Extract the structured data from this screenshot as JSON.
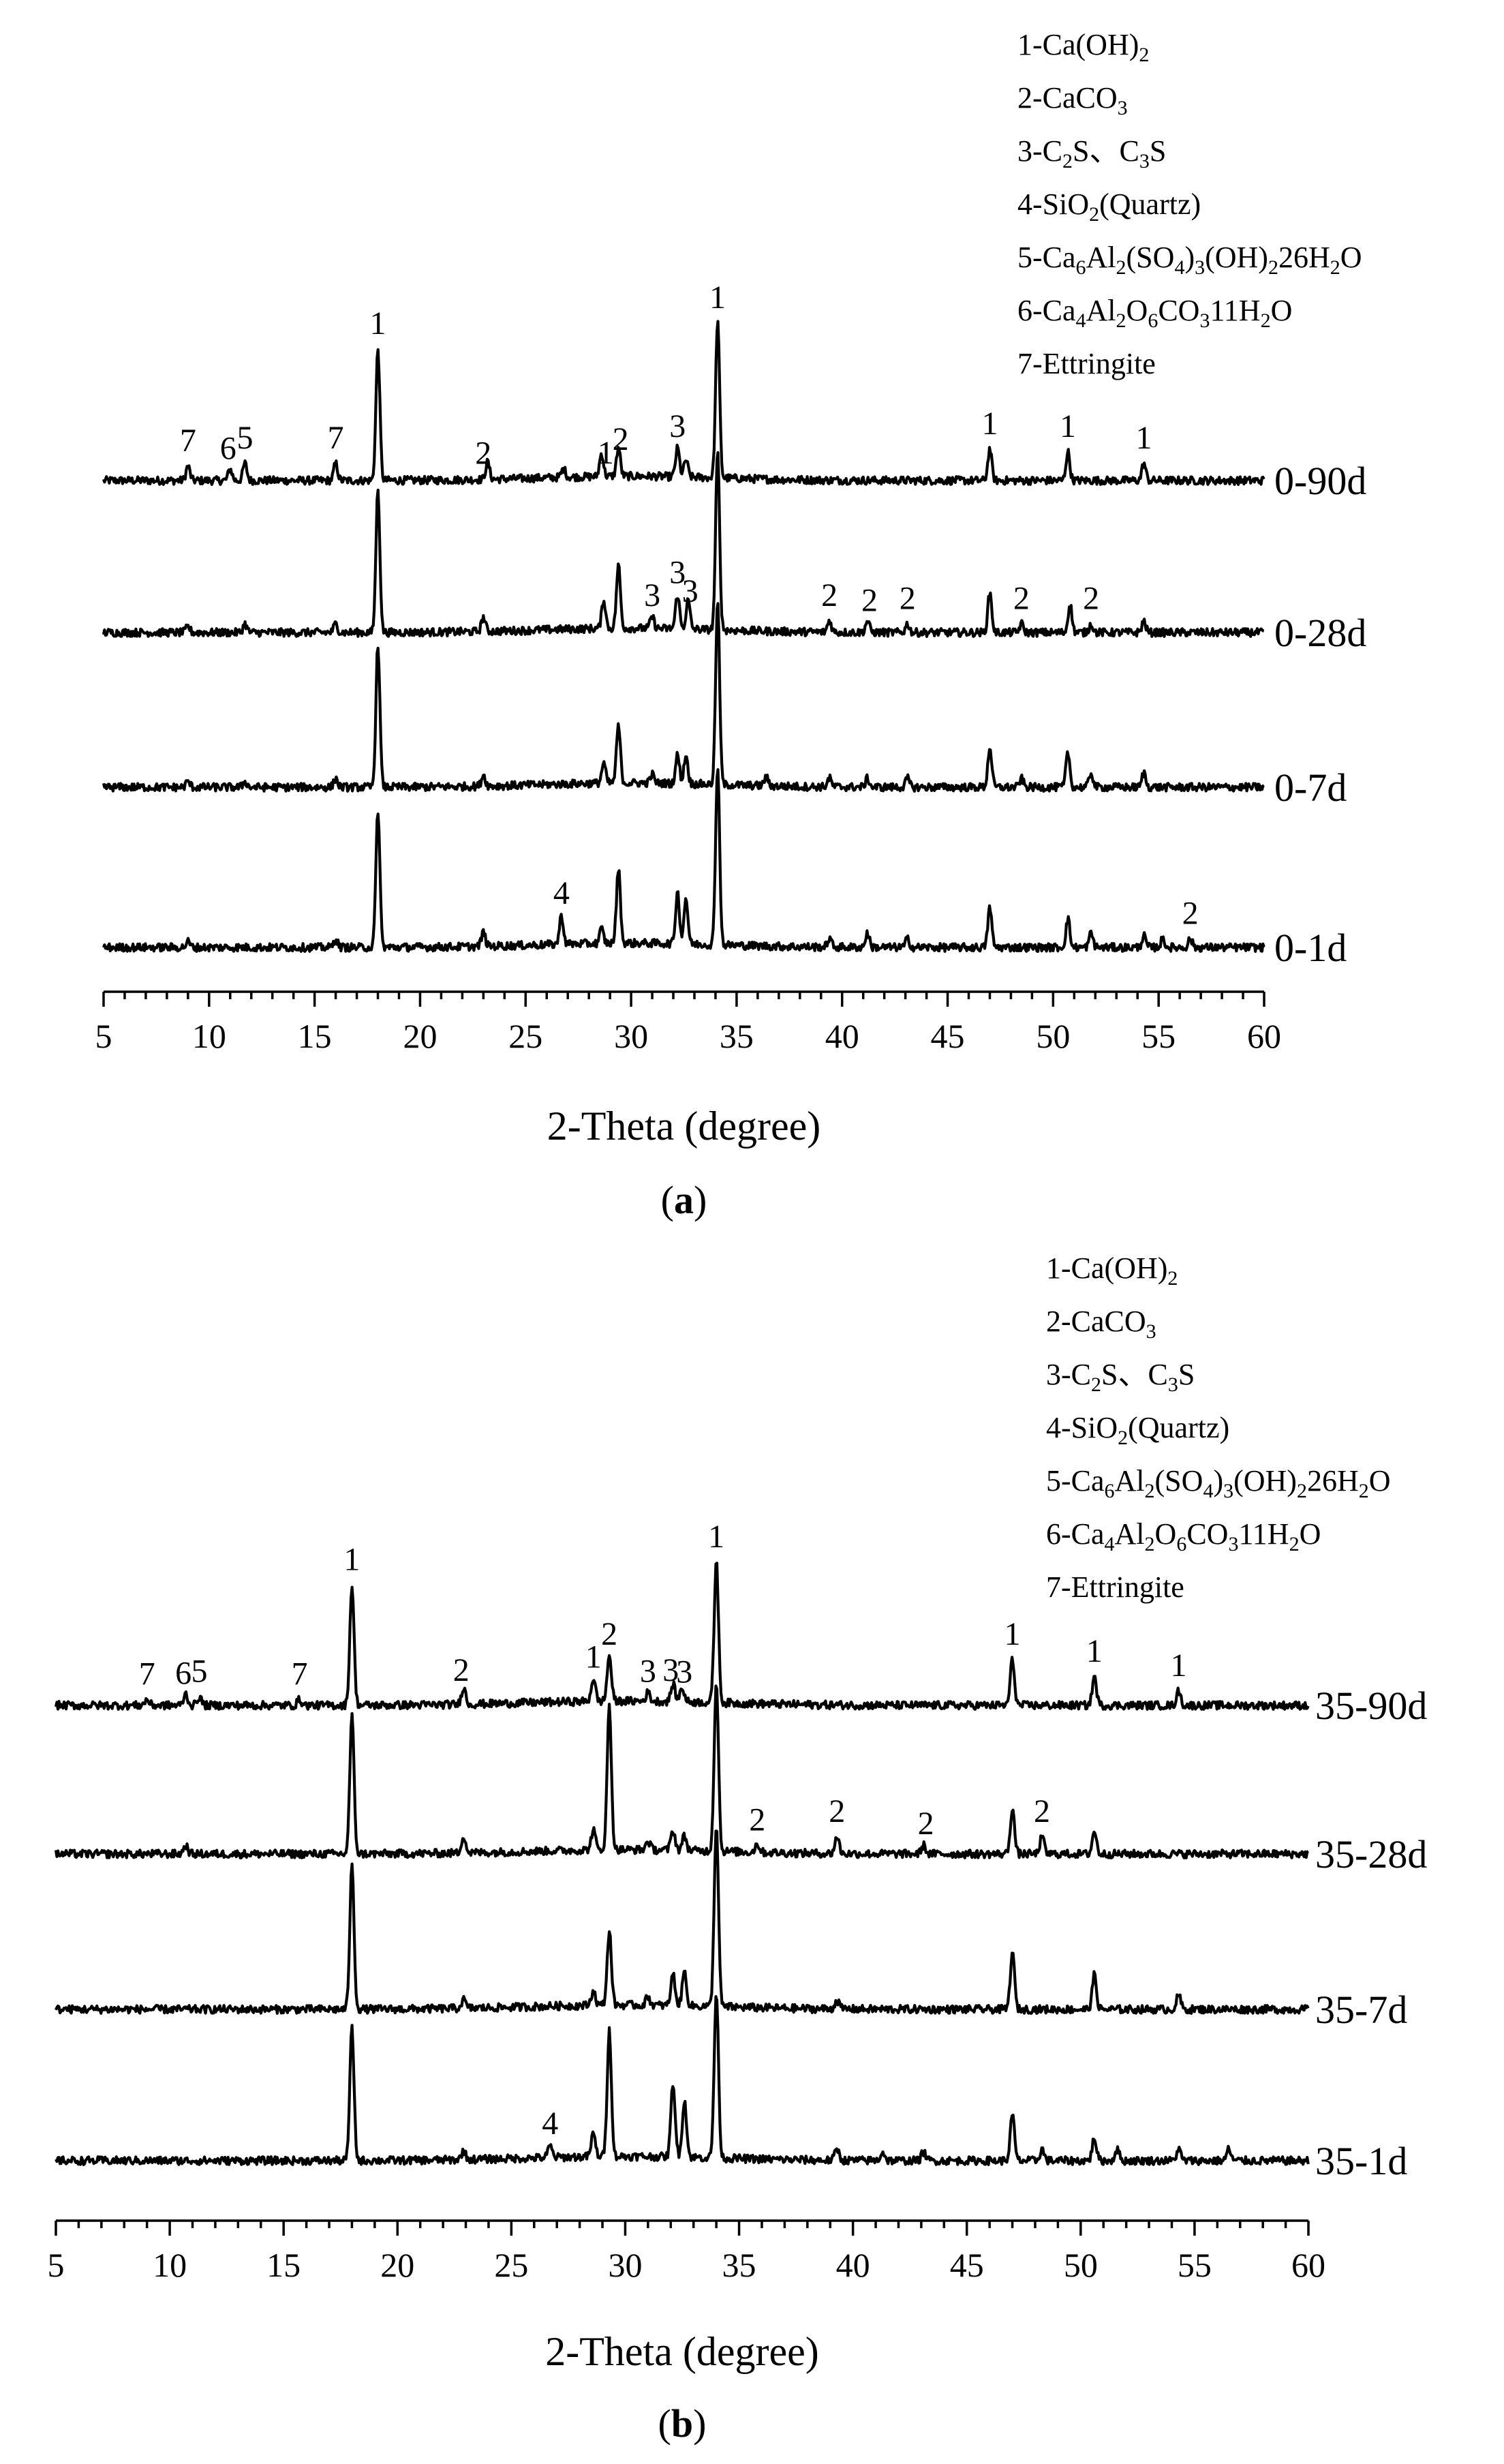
{
  "legend": [
    {
      "base": "1-Ca(OH)",
      "subs": [
        [
          "2",
          0
        ]
      ]
    },
    {
      "base": "2-CaCO",
      "subs": [
        [
          "3",
          0
        ]
      ]
    },
    {
      "parts": [
        [
          "3-C",
          ""
        ],
        [
          "2",
          "sub"
        ],
        [
          "S、C",
          ""
        ],
        [
          "3",
          "sub"
        ],
        [
          "S",
          ""
        ]
      ]
    },
    {
      "parts": [
        [
          "4-SiO",
          ""
        ],
        [
          "2",
          "sub"
        ],
        [
          "(Quartz)",
          ""
        ]
      ]
    },
    {
      "parts": [
        [
          "5-Ca",
          ""
        ],
        [
          "6",
          "sub"
        ],
        [
          "Al",
          ""
        ],
        [
          "2",
          "sub"
        ],
        [
          "(SO",
          ""
        ],
        [
          "4",
          "sub"
        ],
        [
          ")",
          ""
        ],
        [
          "3",
          "sub"
        ],
        [
          "(OH)",
          ""
        ],
        [
          "2",
          "sub"
        ],
        [
          "26H",
          ""
        ],
        [
          "2",
          "sub"
        ],
        [
          "O",
          ""
        ]
      ]
    },
    {
      "parts": [
        [
          "6-Ca",
          ""
        ],
        [
          "4",
          "sub"
        ],
        [
          "Al",
          ""
        ],
        [
          "2",
          "sub"
        ],
        [
          "O",
          ""
        ],
        [
          "6",
          "sub"
        ],
        [
          "CO",
          ""
        ],
        [
          "3",
          "sub"
        ],
        [
          "11H",
          ""
        ],
        [
          "2",
          "sub"
        ],
        [
          "O",
          ""
        ]
      ]
    },
    {
      "parts": [
        [
          "7-Ettringite",
          ""
        ]
      ]
    }
  ],
  "chart_data": [
    {
      "type": "line",
      "caption_prefix": "(",
      "caption_letter": "a",
      "caption_suffix": ")",
      "xlabel": "2-Theta (degree)",
      "xlim": [
        5,
        60
      ],
      "xticks": [
        5,
        10,
        15,
        20,
        25,
        30,
        35,
        40,
        45,
        50,
        55,
        60
      ],
      "series": [
        {
          "name": "0-90d",
          "peaks": [
            [
              9.0,
              0.05
            ],
            [
              11.0,
              0.04
            ],
            [
              11.7,
              0.06
            ],
            [
              16.0,
              0.06
            ],
            [
              18.0,
              0.46
            ],
            [
              23.2,
              0.06
            ],
            [
              26.8,
              0.03
            ],
            [
              28.6,
              0.08
            ],
            [
              29.4,
              0.1
            ],
            [
              32.2,
              0.1
            ],
            [
              32.6,
              0.06
            ],
            [
              34.1,
              0.55
            ],
            [
              47.0,
              0.11
            ],
            [
              50.7,
              0.1
            ],
            [
              54.3,
              0.06
            ]
          ],
          "labels": [
            [
              "7",
              9.0
            ],
            [
              "6",
              10.9
            ],
            [
              "5",
              11.7
            ],
            [
              "7",
              16.0
            ],
            [
              "1",
              18.0
            ],
            [
              "2",
              23.0
            ],
            [
              "1",
              28.8
            ],
            [
              "2",
              29.5
            ],
            [
              "3",
              32.2
            ],
            [
              "1",
              34.1
            ],
            [
              "1",
              47.0
            ],
            [
              "1",
              50.7
            ],
            [
              "1",
              54.3
            ]
          ]
        },
        {
          "name": "0-28d",
          "peaks": [
            [
              9.0,
              0.02
            ],
            [
              11.7,
              0.03
            ],
            [
              16.0,
              0.03
            ],
            [
              18.0,
              0.5
            ],
            [
              23.0,
              0.05
            ],
            [
              28.7,
              0.1
            ],
            [
              29.4,
              0.22
            ],
            [
              31.0,
              0.04
            ],
            [
              32.2,
              0.12
            ],
            [
              32.7,
              0.1
            ],
            [
              34.1,
              0.62
            ],
            [
              39.4,
              0.04
            ],
            [
              41.2,
              0.04
            ],
            [
              43.1,
              0.03
            ],
            [
              47.0,
              0.14
            ],
            [
              48.5,
              0.03
            ],
            [
              50.8,
              0.1
            ],
            [
              51.8,
              0.03
            ],
            [
              54.3,
              0.04
            ]
          ],
          "labels": [
            [
              "3",
              31.0
            ],
            [
              "3",
              32.2
            ],
            [
              "3",
              32.8
            ],
            [
              "2",
              39.4
            ],
            [
              "2",
              41.3
            ],
            [
              "2",
              43.1
            ],
            [
              "2",
              48.5
            ],
            [
              "2",
              51.8
            ]
          ]
        },
        {
          "name": "0-7d",
          "peaks": [
            [
              9.0,
              0.02
            ],
            [
              11.7,
              0.02
            ],
            [
              16.0,
              0.03
            ],
            [
              18.0,
              0.5
            ],
            [
              23.0,
              0.04
            ],
            [
              28.7,
              0.07
            ],
            [
              29.4,
              0.2
            ],
            [
              31.0,
              0.03
            ],
            [
              32.2,
              0.1
            ],
            [
              32.6,
              0.1
            ],
            [
              34.1,
              0.64
            ],
            [
              36.4,
              0.03
            ],
            [
              39.4,
              0.03
            ],
            [
              41.2,
              0.03
            ],
            [
              43.1,
              0.03
            ],
            [
              47.0,
              0.14
            ],
            [
              48.5,
              0.03
            ],
            [
              50.7,
              0.12
            ],
            [
              51.8,
              0.05
            ],
            [
              54.3,
              0.05
            ]
          ],
          "labels": []
        },
        {
          "name": "0-1d",
          "peaks": [
            [
              9.0,
              0.02
            ],
            [
              16.0,
              0.03
            ],
            [
              18.0,
              0.48
            ],
            [
              23.0,
              0.05
            ],
            [
              26.7,
              0.1
            ],
            [
              28.6,
              0.05
            ],
            [
              29.4,
              0.26
            ],
            [
              32.2,
              0.18
            ],
            [
              32.6,
              0.16
            ],
            [
              34.1,
              0.63
            ],
            [
              39.4,
              0.03
            ],
            [
              41.2,
              0.05
            ],
            [
              43.1,
              0.03
            ],
            [
              47.0,
              0.14
            ],
            [
              50.7,
              0.1
            ],
            [
              51.8,
              0.05
            ],
            [
              54.3,
              0.04
            ],
            [
              55.2,
              0.03
            ],
            [
              56.5,
              0.03
            ]
          ],
          "labels": [
            [
              "4",
              26.7
            ],
            [
              "2",
              56.5
            ]
          ]
        }
      ]
    },
    {
      "type": "line",
      "caption_prefix": "(",
      "caption_letter": "b",
      "caption_suffix": ")",
      "xlabel": "2-Theta (degree)",
      "xlim": [
        5,
        60
      ],
      "xticks": [
        5,
        10,
        15,
        20,
        25,
        30,
        35,
        40,
        45,
        50,
        55,
        60
      ],
      "series": [
        {
          "name": "35-90d",
          "peaks": [
            [
              9.0,
              0.02
            ],
            [
              10.7,
              0.04
            ],
            [
              11.3,
              0.03
            ],
            [
              15.7,
              0.02
            ],
            [
              18.0,
              0.42
            ],
            [
              22.9,
              0.06
            ],
            [
              28.6,
              0.08
            ],
            [
              29.3,
              0.16
            ],
            [
              31.0,
              0.03
            ],
            [
              32.1,
              0.06
            ],
            [
              32.5,
              0.05
            ],
            [
              34.0,
              0.5
            ],
            [
              47.0,
              0.16
            ],
            [
              50.6,
              0.1
            ],
            [
              54.3,
              0.05
            ]
          ],
          "labels": [
            [
              "7",
              9.0
            ],
            [
              "6",
              10.6
            ],
            [
              "5",
              11.3
            ],
            [
              "7",
              15.7
            ],
            [
              "1",
              18.0
            ],
            [
              "2",
              22.8
            ],
            [
              "1",
              28.6
            ],
            [
              "2",
              29.3
            ],
            [
              "3",
              31.0
            ],
            [
              "3",
              32.0
            ],
            [
              "3",
              32.6
            ],
            [
              "1",
              34.0
            ],
            [
              "1",
              47.0
            ],
            [
              "1",
              50.6
            ],
            [
              "1",
              54.3
            ]
          ]
        },
        {
          "name": "35-28d",
          "peaks": [
            [
              10.7,
              0.03
            ],
            [
              18.0,
              0.48
            ],
            [
              22.9,
              0.06
            ],
            [
              28.6,
              0.07
            ],
            [
              29.3,
              0.5
            ],
            [
              31.0,
              0.03
            ],
            [
              32.1,
              0.07
            ],
            [
              32.6,
              0.05
            ],
            [
              34.0,
              0.6
            ],
            [
              35.8,
              0.03
            ],
            [
              39.3,
              0.06
            ],
            [
              43.1,
              0.03
            ],
            [
              47.0,
              0.16
            ],
            [
              48.3,
              0.06
            ],
            [
              50.6,
              0.08
            ]
          ],
          "labels": [
            [
              "2",
              35.8
            ],
            [
              "2",
              39.3
            ],
            [
              "2",
              43.2
            ],
            [
              "2",
              48.3
            ]
          ]
        },
        {
          "name": "35-7d",
          "peaks": [
            [
              18.0,
              0.5
            ],
            [
              22.9,
              0.03
            ],
            [
              28.6,
              0.05
            ],
            [
              29.3,
              0.26
            ],
            [
              31.0,
              0.03
            ],
            [
              32.1,
              0.11
            ],
            [
              32.6,
              0.12
            ],
            [
              34.0,
              0.64
            ],
            [
              39.3,
              0.03
            ],
            [
              47.0,
              0.2
            ],
            [
              50.6,
              0.12
            ],
            [
              54.3,
              0.05
            ]
          ],
          "labels": []
        },
        {
          "name": "35-1d",
          "peaks": [
            [
              18.0,
              0.46
            ],
            [
              22.9,
              0.03
            ],
            [
              26.7,
              0.04
            ],
            [
              28.6,
              0.08
            ],
            [
              29.3,
              0.44
            ],
            [
              32.1,
              0.26
            ],
            [
              32.6,
              0.2
            ],
            [
              34.0,
              0.58
            ],
            [
              39.3,
              0.04
            ],
            [
              41.3,
              0.03
            ],
            [
              43.1,
              0.03
            ],
            [
              47.0,
              0.16
            ],
            [
              48.3,
              0.04
            ],
            [
              50.6,
              0.08
            ],
            [
              51.6,
              0.04
            ],
            [
              54.3,
              0.04
            ],
            [
              56.5,
              0.04
            ]
          ],
          "labels": [
            [
              "4",
              26.7
            ]
          ]
        }
      ]
    }
  ]
}
